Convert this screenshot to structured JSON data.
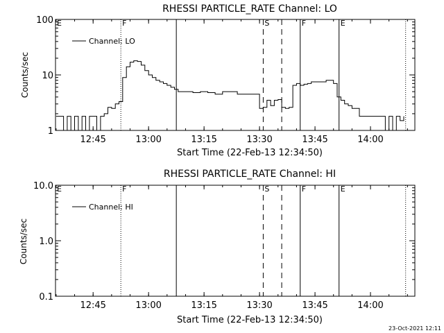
{
  "chart_data": [
    {
      "type": "line",
      "title": "RHESSI PARTICLE_RATE Channel: LO",
      "xlabel": "Start Time (22-Feb-13 12:34:50)",
      "ylabel": "Counts/sec",
      "y_scale": "log",
      "ylim": [
        1,
        100
      ],
      "xlim": [
        "12:34:50",
        "14:12:00"
      ],
      "x_ticks": [
        "12:45",
        "13:00",
        "13:15",
        "13:30",
        "13:45",
        "14:00"
      ],
      "y_ticks": [
        "1",
        "10",
        "100"
      ],
      "legend": "Channel: LO",
      "legend_position": "top-left",
      "markers": [
        {
          "label": "E",
          "time": "12:34:50",
          "style": "dotted"
        },
        {
          "label": "F",
          "time": "12:52:30",
          "style": "dotted"
        },
        {
          "label": "",
          "time": "13:07:30",
          "style": "solid"
        },
        {
          "label": "S",
          "time": "13:31:00",
          "style": "dashed"
        },
        {
          "label": "",
          "time": "13:36:00",
          "style": "dashed"
        },
        {
          "label": "F",
          "time": "13:41:00",
          "style": "solid"
        },
        {
          "label": "E",
          "time": "13:51:30",
          "style": "solid"
        },
        {
          "label": "",
          "time": "14:09:30",
          "style": "dotted"
        }
      ],
      "series": [
        {
          "name": "Channel: LO",
          "x": [
            "12:35",
            "12:36",
            "12:37",
            "12:38",
            "12:39",
            "12:40",
            "12:41",
            "12:42",
            "12:43",
            "12:44",
            "12:45",
            "12:46",
            "12:47",
            "12:48",
            "12:49",
            "12:50",
            "12:51",
            "12:52",
            "12:53",
            "12:54",
            "12:55",
            "12:56",
            "12:57",
            "12:58",
            "12:59",
            "13:00",
            "13:01",
            "13:02",
            "13:03",
            "13:04",
            "13:05",
            "13:06",
            "13:07",
            "13:08",
            "13:10",
            "13:12",
            "13:14",
            "13:16",
            "13:18",
            "13:20",
            "13:22",
            "13:24",
            "13:26",
            "13:28",
            "13:30",
            "13:31",
            "13:32",
            "13:33",
            "13:34",
            "13:35",
            "13:36",
            "13:37",
            "13:38",
            "13:39",
            "13:40",
            "13:41",
            "13:42",
            "13:43",
            "13:44",
            "13:46",
            "13:48",
            "13:50",
            "13:51",
            "13:52",
            "13:53",
            "13:54",
            "13:55",
            "13:56",
            "13:57",
            "13:58",
            "14:00",
            "14:02",
            "14:04",
            "14:05",
            "14:06",
            "14:07",
            "14:08",
            "14:09"
          ],
          "y": [
            1.8,
            1.8,
            1,
            1.8,
            1,
            1.8,
            1,
            1.8,
            1,
            1.8,
            1.8,
            1,
            1.8,
            2,
            2.6,
            2.5,
            3,
            3.3,
            9,
            14,
            17,
            18,
            17.5,
            15,
            12,
            10,
            9,
            8,
            7.5,
            7,
            6.5,
            6,
            5.5,
            5,
            5,
            4.8,
            5,
            4.8,
            4.5,
            5,
            5,
            4.5,
            4.5,
            4.5,
            2.5,
            2.6,
            3.5,
            2.8,
            3.5,
            3.6,
            2.6,
            2.5,
            2.6,
            6.5,
            7,
            6.5,
            6.8,
            7,
            7.5,
            7.5,
            8,
            7,
            4,
            3.5,
            3,
            2.8,
            2.5,
            2.5,
            1.8,
            1.8,
            1.8,
            1.8,
            1,
            1.8,
            1,
            1.8,
            1.5,
            1.8
          ]
        }
      ]
    },
    {
      "type": "line",
      "title": "RHESSI PARTICLE_RATE Channel: HI",
      "xlabel": "Start Time (22-Feb-13 12:34:50)",
      "ylabel": "Counts/sec",
      "y_scale": "log",
      "ylim": [
        0.1,
        10
      ],
      "xlim": [
        "12:34:50",
        "14:12:00"
      ],
      "x_ticks": [
        "12:45",
        "13:00",
        "13:15",
        "13:30",
        "13:45",
        "14:00"
      ],
      "y_ticks": [
        "0.1",
        "1.0",
        "10.0"
      ],
      "legend": "Channel: HI",
      "legend_position": "top-left",
      "markers": [
        {
          "label": "E",
          "time": "12:34:50",
          "style": "dotted"
        },
        {
          "label": "F",
          "time": "12:52:30",
          "style": "dotted"
        },
        {
          "label": "",
          "time": "13:07:30",
          "style": "solid"
        },
        {
          "label": "S",
          "time": "13:31:00",
          "style": "dashed"
        },
        {
          "label": "",
          "time": "13:36:00",
          "style": "dashed"
        },
        {
          "label": "F",
          "time": "13:41:00",
          "style": "solid"
        },
        {
          "label": "E",
          "time": "13:51:30",
          "style": "solid"
        },
        {
          "label": "",
          "time": "14:09:30",
          "style": "dotted"
        }
      ],
      "series": [
        {
          "name": "Channel: HI",
          "x": [],
          "y": []
        }
      ]
    }
  ],
  "footer": {
    "timestamp": "23-Oct-2021 12:11"
  }
}
